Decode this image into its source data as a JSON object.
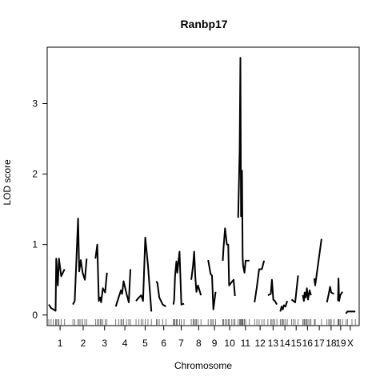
{
  "chart_data": {
    "type": "line",
    "title": "Ranbp17",
    "xlabel": "Chromosome",
    "ylabel": "LOD score",
    "ylim": [
      -0.15,
      3.8
    ],
    "yticks": [
      0,
      1,
      2,
      3
    ],
    "grid": false,
    "legend": "none",
    "chromosomes": [
      {
        "label": "1",
        "span": [
          0,
          100
        ],
        "points": [
          [
            0,
            0.15
          ],
          [
            10,
            0.1
          ],
          [
            20,
            0.08
          ],
          [
            30,
            0.06
          ],
          [
            33,
            0.8
          ],
          [
            40,
            0.42
          ],
          [
            45,
            0.8
          ],
          [
            55,
            0.55
          ],
          [
            70,
            0.65
          ]
        ]
      },
      {
        "label": "2",
        "span": [
          105,
          200
        ],
        "points": [
          [
            107,
            0.15
          ],
          [
            115,
            0.2
          ],
          [
            130,
            1.37
          ],
          [
            135,
            0.62
          ],
          [
            142,
            0.78
          ],
          [
            150,
            0.6
          ],
          [
            160,
            0.5
          ],
          [
            168,
            0.8
          ]
        ]
      },
      {
        "label": "3",
        "span": [
          205,
          290
        ],
        "points": [
          [
            207,
            0.8
          ],
          [
            215,
            1.0
          ],
          [
            222,
            0.2
          ],
          [
            228,
            0.25
          ],
          [
            232,
            0.18
          ],
          [
            240,
            0.38
          ],
          [
            250,
            0.32
          ],
          [
            258,
            0.6
          ]
        ]
      },
      {
        "label": "4",
        "span": [
          295,
          380
        ],
        "points": [
          [
            297,
            0.12
          ],
          [
            310,
            0.25
          ],
          [
            320,
            0.35
          ],
          [
            325,
            0.3
          ],
          [
            332,
            0.48
          ],
          [
            345,
            0.3
          ],
          [
            355,
            0.18
          ],
          [
            362,
            0.65
          ]
        ]
      },
      {
        "label": "5",
        "span": [
          385,
          470
        ],
        "points": [
          [
            387,
            0.2
          ],
          [
            400,
            0.25
          ],
          [
            410,
            0.28
          ],
          [
            418,
            0.2
          ],
          [
            428,
            1.1
          ],
          [
            440,
            0.7
          ],
          [
            455,
            0.05
          ]
        ]
      },
      {
        "label": "6",
        "span": [
          475,
          545
        ],
        "points": [
          [
            477,
            0.48
          ],
          [
            482,
            0.45
          ],
          [
            490,
            0.25
          ],
          [
            505,
            0.15
          ],
          [
            520,
            0.12
          ]
        ]
      },
      {
        "label": "7",
        "span": [
          550,
          625
        ],
        "points": [
          [
            553,
            0.15
          ],
          [
            556,
            0.22
          ],
          [
            560,
            0.55
          ],
          [
            566,
            0.76
          ],
          [
            570,
            0.6
          ],
          [
            580,
            0.9
          ],
          [
            588,
            0.15
          ],
          [
            600,
            0.16
          ]
        ]
      },
      {
        "label": "8",
        "span": [
          630,
          700
        ],
        "points": [
          [
            632,
            0.5
          ],
          [
            640,
            0.7
          ],
          [
            645,
            0.9
          ],
          [
            650,
            0.55
          ],
          [
            655,
            0.33
          ],
          [
            662,
            0.42
          ],
          [
            675,
            0.28
          ]
        ]
      },
      {
        "label": "9",
        "span": [
          705,
          765
        ],
        "points": [
          [
            707,
            0.78
          ],
          [
            718,
            0.58
          ],
          [
            724,
            0.56
          ],
          [
            730,
            0.08
          ],
          [
            740,
            0.33
          ]
        ]
      },
      {
        "label": "10",
        "span": [
          770,
          835
        ],
        "points": [
          [
            772,
            0.77
          ],
          [
            775,
            0.95
          ],
          [
            782,
            1.23
          ],
          [
            790,
            1.0
          ],
          [
            796,
            1.0
          ],
          [
            800,
            0.42
          ],
          [
            812,
            0.47
          ],
          [
            820,
            0.5
          ],
          [
            826,
            0.27
          ]
        ]
      },
      {
        "label": "11",
        "span": [
          840,
          905
        ],
        "points": [
          [
            840,
            1.38
          ],
          [
            847,
            2.35
          ],
          [
            850,
            3.65
          ],
          [
            853,
            1.4
          ],
          [
            857,
            2.05
          ],
          [
            860,
            0.82
          ],
          [
            862,
            0.7
          ],
          [
            868,
            0.6
          ],
          [
            873,
            0.77
          ],
          [
            890,
            0.77
          ]
        ]
      },
      {
        "label": "12",
        "span": [
          910,
          965
        ],
        "points": [
          [
            913,
            0.18
          ],
          [
            923,
            0.4
          ],
          [
            933,
            0.65
          ],
          [
            945,
            0.65
          ],
          [
            955,
            0.77
          ]
        ]
      },
      {
        "label": "13",
        "span": [
          970,
          1020
        ],
        "points": [
          [
            972,
            0.28
          ],
          [
            985,
            0.3
          ],
          [
            990,
            0.5
          ],
          [
            996,
            0.22
          ],
          [
            1003,
            0.2
          ],
          [
            1012,
            0.15
          ]
        ]
      },
      {
        "label": "14",
        "span": [
          1025,
          1070
        ],
        "points": [
          [
            1027,
            0.05
          ],
          [
            1033,
            0.12
          ],
          [
            1038,
            0.08
          ],
          [
            1043,
            0.14
          ],
          [
            1050,
            0.12
          ],
          [
            1058,
            0.2
          ]
        ]
      },
      {
        "label": "15",
        "span": [
          1075,
          1120
        ],
        "points": [
          [
            1077,
            0.22
          ],
          [
            1085,
            0.2
          ],
          [
            1093,
            0.18
          ],
          [
            1106,
            0.56
          ]
        ]
      },
      {
        "label": "16",
        "span": [
          1125,
          1170
        ],
        "points": [
          [
            1127,
            0.28
          ],
          [
            1132,
            0.2
          ],
          [
            1135,
            0.32
          ],
          [
            1140,
            0.25
          ],
          [
            1145,
            0.38
          ],
          [
            1150,
            0.22
          ],
          [
            1157,
            0.35
          ],
          [
            1163,
            0.28
          ]
        ]
      },
      {
        "label": "17",
        "span": [
          1175,
          1225
        ],
        "points": [
          [
            1178,
            0.52
          ],
          [
            1182,
            0.42
          ],
          [
            1210,
            1.08
          ]
        ]
      },
      {
        "label": "18",
        "span": [
          1230,
          1275
        ],
        "points": [
          [
            1234,
            0.18
          ],
          [
            1242,
            0.3
          ],
          [
            1248,
            0.4
          ],
          [
            1253,
            0.32
          ],
          [
            1265,
            0.3
          ]
        ]
      },
      {
        "label": "19",
        "span": [
          1280,
          1310
        ],
        "points": [
          [
            1283,
            0.2
          ],
          [
            1285,
            0.52
          ],
          [
            1288,
            0.2
          ],
          [
            1293,
            0.28
          ],
          [
            1303,
            0.33
          ]
        ]
      },
      {
        "label": "X",
        "span": [
          1315,
          1360
        ],
        "points": [
          [
            1318,
            0.02
          ],
          [
            1325,
            0.05
          ],
          [
            1345,
            0.05
          ],
          [
            1360,
            0.05
          ]
        ]
      }
    ]
  }
}
